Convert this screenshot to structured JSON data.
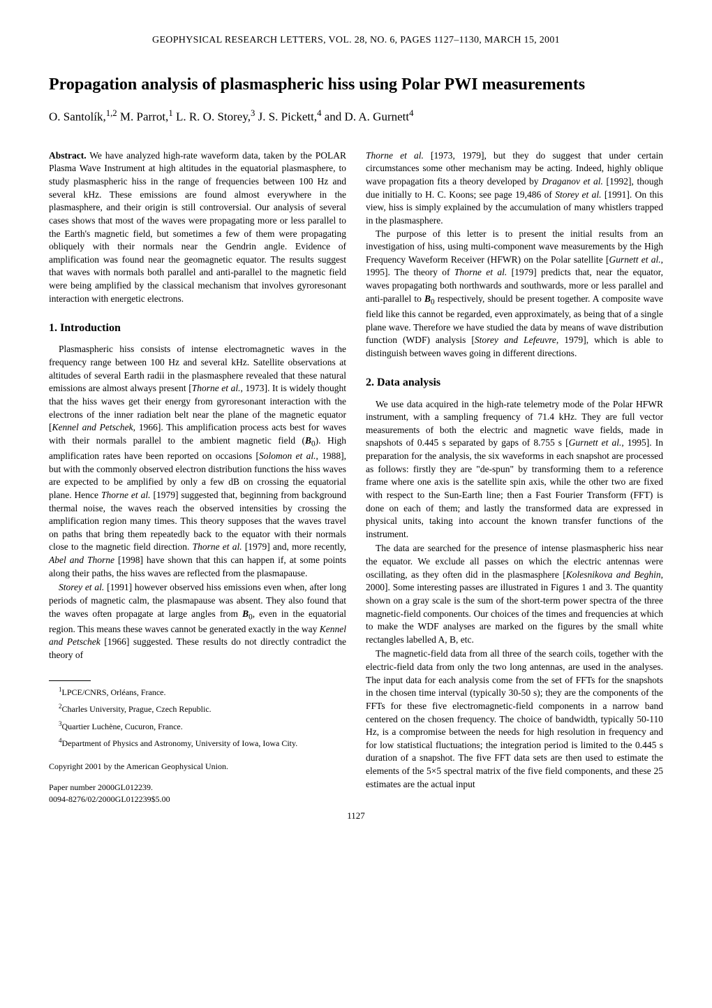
{
  "running_head": "GEOPHYSICAL RESEARCH LETTERS, VOL. 28, NO. 6, PAGES 1127–1130, MARCH 15, 2001",
  "title": "Propagation analysis of plasmaspheric hiss using Polar PWI measurements",
  "authors_html": "O. Santolík,<sup>1,2</sup> M. Parrot,<sup>1</sup> L. R. O. Storey,<sup>3</sup> J. S. Pickett,<sup>4</sup> and D. A. Gurnett<sup>4</sup>",
  "left": {
    "abstract_label": "Abstract.",
    "abstract_text": "    We have analyzed high-rate waveform data, taken by the POLAR Plasma Wave Instrument at high altitudes in the equatorial plasmasphere, to study plasmaspheric hiss in the range of frequencies between 100 Hz and several kHz. These emissions are found almost everywhere in the plasmasphere, and their origin is still controversial. Our analysis of several cases shows that most of the waves were propagating more or less parallel to the Earth's magnetic field, but sometimes a few of them were propagating obliquely with their normals near the Gendrin angle. Evidence of amplification was found near the geomagnetic equator. The results suggest that waves with normals both parallel and anti-parallel to the magnetic field were being amplified by the classical mechanism that involves gyroresonant interaction with energetic electrons.",
    "section1_head": "1.  Introduction",
    "intro_p1_html": "Plasmaspheric hiss consists of intense electromagnetic waves in the frequency range between 100 Hz and several kHz. Satellite observations at altitudes of several Earth radii in the plasmasphere revealed that these natural emissions are almost always present [<em>Thorne et al.</em>, 1973]. It is widely thought that the hiss waves get their energy from gyroresonant interaction with the electrons of the inner radiation belt near the plane of the magnetic equator [<em>Kennel and Petschek</em>, 1966]. This amplification process acts best for waves with their normals parallel to the ambient magnetic field (<em><strong>B</strong></em><sub>0</sub>). High amplification rates have been reported on occasions [<em>Solomon et al.</em>, 1988], but with the commonly observed electron distribution functions the hiss waves are expected to be amplified by only a few dB on crossing the equatorial plane. Hence <em>Thorne et al.</em> [1979] suggested that, beginning from background thermal noise, the waves reach the observed intensities by crossing the amplification region many times. This theory supposes that the waves travel on paths that bring them repeatedly back to the equator with their normals close to the magnetic field direction. <em>Thorne et al.</em> [1979] and, more recently, <em>Abel and Thorne</em> [1998] have shown that this can happen if, at some points along their paths, the hiss waves are reflected from the plasmapause.",
    "intro_p2_html": "<em>Storey et al.</em> [1991] however observed hiss emissions even when, after long periods of magnetic calm, the plasmapause was absent. They also found that the waves often propagate at large angles from <em><strong>B</strong></em><sub>0</sub>, even in the equatorial region. This means these waves cannot be generated exactly in the way <em>Kennel and Petschek</em> [1966] suggested. These results do not directly contradict the theory of",
    "affil1_html": "<sup>1</sup>LPCE/CNRS, Orléans, France.",
    "affil2_html": "<sup>2</sup>Charles University, Prague, Czech Republic.",
    "affil3_html": "<sup>3</sup>Quartier Luchène, Cucuron, France.",
    "affil4_html": "<sup>4</sup>Department of Physics and Astronomy, University of Iowa, Iowa City.",
    "copyright": "Copyright 2001 by the American Geophysical Union.",
    "paper_num": "Paper number 2000GL012239.",
    "paper_code": "0094-8276/02/2000GL012239$5.00"
  },
  "right": {
    "cont_p1_html": "<em>Thorne et al.</em> [1973, 1979], but they do suggest that under certain circumstances some other mechanism may be acting. Indeed, highly oblique wave propagation fits a theory developed by <em>Draganov et al.</em> [1992], though due initially to H. C. Koons; see page 19,486 of <em>Storey et al.</em> [1991]. On this view, hiss is simply explained by the accumulation of many whistlers trapped in the plasmasphere.",
    "cont_p2_html": "The purpose of this letter is to present the initial results from an investigation of hiss, using multi-component wave measurements by the High Frequency Waveform Receiver (HFWR) on the Polar satellite [<em>Gurnett et al.</em>, 1995]. The theory of <em>Thorne et al.</em> [1979] predicts that, near the equator, waves propagating both northwards and southwards, more or less parallel and anti-parallel to <em><strong>B</strong></em><sub>0</sub> respectively, should be present together. A composite wave field like this cannot be regarded, even approximately, as being that of a single plane wave. Therefore we have studied the data by means of wave distribution function (WDF) analysis [<em>Storey and Lefeuvre</em>, 1979], which is able to distinguish between waves going in different directions.",
    "section2_head": "2.  Data analysis",
    "data_p1_html": "We use data acquired in the high-rate telemetry mode of the Polar HFWR instrument, with a sampling frequency of 71.4 kHz. They are full vector measurements of both the electric and magnetic wave fields, made in snapshots of 0.445 s separated by gaps of 8.755 s [<em>Gurnett et al.</em>, 1995]. In preparation for the analysis, the six waveforms in each snapshot are processed as follows: firstly they are \"de-spun\" by transforming them to a reference frame where one axis is the satellite spin axis, while the other two are fixed with respect to the Sun-Earth line; then a Fast Fourier Transform (FFT) is done on each of them; and lastly the transformed data are expressed in physical units, taking into account the known transfer functions of the instrument.",
    "data_p2_html": "The data are searched for the presence of intense plasmaspheric hiss near the equator. We exclude all passes on which the electric antennas were oscillating, as they often did in the plasmasphere [<em>Kolesnikova and Beghin</em>, 2000]. Some interesting passes are illustrated in Figures 1 and 3. The quantity shown on a gray scale is the sum of the short-term power spectra of the three magnetic-field components. Our choices of the times and frequencies at which to make the WDF analyses are marked on the figures by the small white rectangles labelled A, B, etc.",
    "data_p3_html": "The magnetic-field data from all three of the search coils, together with the electric-field data from only the two long antennas, are used in the analyses. The input data for each analysis come from the set of FFTs for the snapshots in the chosen time interval (typically 30-50 s); they are the components of the FFTs for these five electromagnetic-field components in a narrow band centered on the chosen frequency. The choice of bandwidth, typically 50-110 Hz, is a compromise between the needs for high resolution in frequency and for low statistical fluctuations; the integration period is limited to the 0.445 s duration of a snapshot. The five FFT data sets are then used to estimate the elements of the 5×5 spectral matrix of the five field components, and these 25 estimates are the actual input"
  },
  "page_number": "1127"
}
